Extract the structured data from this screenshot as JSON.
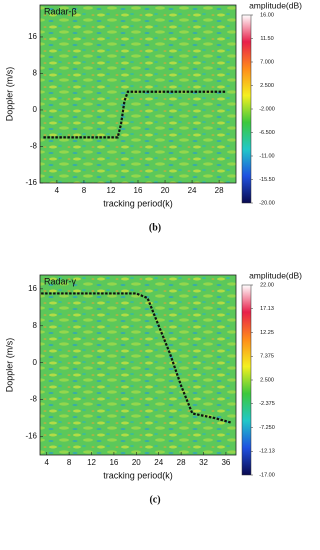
{
  "chart_data": [
    {
      "type": "heatmap",
      "title": "Radar-β",
      "x_label": "tracking period(k)",
      "y_label": "Doppler (m/s)",
      "caption": "(b)",
      "xlim": [
        1.5,
        30.5
      ],
      "ylim": [
        -16,
        23
      ],
      "xticks": [
        4,
        8,
        12,
        16,
        20,
        24,
        28
      ],
      "yticks": [
        -16,
        -8,
        0,
        8,
        16
      ],
      "colorbar": {
        "title": "amplitude(dB)",
        "lim": [
          -20,
          16
        ],
        "colors": [
          "#ffffff",
          "#e8204a",
          "#ff8c1a",
          "#f4f020",
          "#3cc83c",
          "#20c8c8",
          "#1f50e0",
          "#0a0a50"
        ],
        "ticks": [
          {
            "value": -20,
            "label": "-20.00"
          },
          {
            "value": -15.5,
            "label": "-15.50"
          },
          {
            "value": -11,
            "label": "-11.00"
          },
          {
            "value": -6.5,
            "label": "-6.500"
          },
          {
            "value": -2,
            "label": "-2.000"
          },
          {
            "value": 2.5,
            "label": "2.500"
          },
          {
            "value": 7,
            "label": "7.000"
          },
          {
            "value": 11.5,
            "label": "11.50"
          },
          {
            "value": 16,
            "label": "16.00"
          }
        ]
      },
      "series": [
        {
          "color": "#111111",
          "x": [
            2,
            13,
            13.5,
            14,
            14.5,
            29
          ],
          "values": [
            -6,
            -6,
            -3,
            2,
            4,
            4
          ]
        }
      ]
    },
    {
      "type": "heatmap",
      "title": "Radar-γ",
      "x_label": "tracking period(k)",
      "y_label": "Doppler (m/s)",
      "caption": "(c)",
      "xlim": [
        2.8,
        37.8
      ],
      "ylim": [
        -20,
        19
      ],
      "xticks": [
        4,
        8,
        12,
        16,
        20,
        24,
        28,
        32,
        36
      ],
      "yticks": [
        -16,
        -8,
        0,
        8,
        16
      ],
      "colorbar": {
        "title": "amplitude(dB)",
        "lim": [
          -17,
          22
        ],
        "colors": [
          "#ffffff",
          "#e8204a",
          "#ff8c1a",
          "#f4f020",
          "#3cc83c",
          "#20c8c8",
          "#1f50e0",
          "#0a0a50"
        ],
        "ticks": [
          {
            "value": -17,
            "label": "-17.00"
          },
          {
            "value": -12.13,
            "label": "-12.13"
          },
          {
            "value": -7.25,
            "label": "-7.250"
          },
          {
            "value": -2.375,
            "label": "-2.375"
          },
          {
            "value": 2.5,
            "label": "2.500"
          },
          {
            "value": 7.375,
            "label": "7.375"
          },
          {
            "value": 12.25,
            "label": "12.25"
          },
          {
            "value": 17.13,
            "label": "17.13"
          },
          {
            "value": 22,
            "label": "22.00"
          }
        ]
      },
      "series": [
        {
          "color": "#111111",
          "x": [
            3,
            20,
            22,
            24,
            26,
            28,
            30,
            34,
            37
          ],
          "values": [
            15,
            15,
            14,
            8,
            2,
            -5,
            -11,
            -12,
            -13
          ]
        }
      ]
    }
  ]
}
